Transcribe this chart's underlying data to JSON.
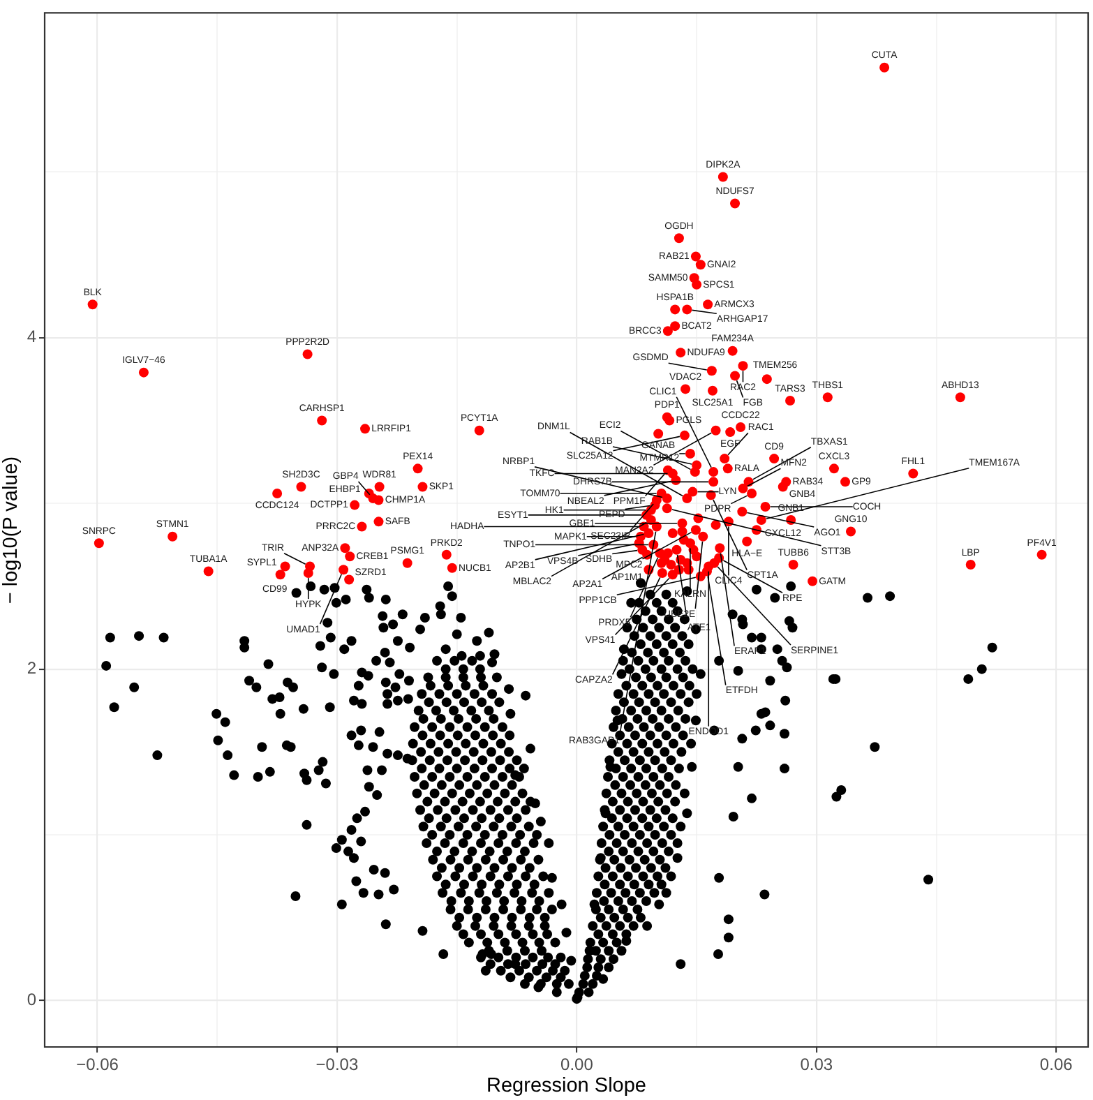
{
  "chart_data": {
    "type": "scatter",
    "xlabel": "Regression Slope",
    "ylabel": "− log10(P value)",
    "xlim": [
      -0.0666,
      0.064
    ],
    "ylim": [
      -0.28,
      5.96
    ],
    "xticks": [
      {
        "value": -0.06,
        "label": "−0.06"
      },
      {
        "value": -0.045,
        "label": null
      },
      {
        "value": -0.03,
        "label": "−0.03"
      },
      {
        "value": -0.015,
        "label": null
      },
      {
        "value": 0,
        "label": "0.00"
      },
      {
        "value": 0.015,
        "label": null
      },
      0.03,
      {
        "value": 0.045,
        "label": null
      },
      0.06
    ],
    "yticks": [
      0,
      {
        "value": 1,
        "label": null
      },
      2,
      {
        "value": 3,
        "label": null
      },
      4,
      {
        "value": 5,
        "label": null
      }
    ],
    "grid": true,
    "marker": "circle",
    "series": [
      {
        "color": "#000000",
        "x": [
          -0.0584,
          -0.0548,
          -0.0517,
          -0.0589,
          -0.0554,
          -0.0579,
          -0.0525,
          -0.0451,
          -0.044,
          -0.0449,
          -0.0437,
          -0.0429,
          -0.0416,
          -0.0416,
          -0.0386,
          -0.041,
          -0.0401,
          -0.0381,
          -0.0372,
          -0.0371,
          -0.0362,
          -0.0355,
          -0.0342,
          -0.0394,
          -0.0363,
          -0.0358,
          -0.0399,
          -0.0384,
          -0.0341,
          -0.0338,
          -0.0338,
          -0.0352,
          -0.0351,
          -0.0333,
          -0.0316,
          -0.0303,
          -0.0301,
          -0.0289,
          -0.0263,
          -0.026,
          -0.0239,
          -0.0312,
          -0.0321,
          -0.0308,
          -0.0291,
          -0.0282,
          -0.0319,
          -0.0304,
          -0.0309,
          -0.0318,
          -0.0323,
          -0.0314,
          -0.0243,
          -0.0242,
          -0.023,
          -0.0218,
          -0.0251,
          -0.024,
          -0.0234,
          -0.0224,
          -0.0209,
          -0.0269,
          -0.0261,
          -0.0273,
          -0.0279,
          -0.0269,
          -0.0222,
          -0.0239,
          -0.0227,
          -0.021,
          -0.0237,
          -0.0224,
          -0.0237,
          -0.0211,
          -0.027,
          -0.0282,
          -0.0273,
          -0.0255,
          -0.0247,
          -0.0262,
          -0.026,
          -0.025,
          -0.0244,
          -0.0237,
          -0.0224,
          -0.0212,
          -0.0265,
          -0.0275,
          -0.0282,
          -0.0294,
          -0.0301,
          -0.0286,
          -0.0279,
          -0.027,
          -0.0276,
          -0.0267,
          -0.0254,
          -0.024,
          -0.0248,
          -0.0229,
          -0.0294,
          -0.0239,
          -0.0193,
          -0.0167,
          -0.0114,
          -0.0118,
          -0.0107,
          -0.017,
          -0.0171,
          -0.0161,
          -0.0156,
          -0.0145,
          -0.015,
          -0.0164,
          -0.0144,
          -0.0125,
          -0.011,
          -0.0121,
          -0.0106,
          -0.0103,
          -0.019,
          -0.0196,
          -0.0077,
          -0.0048,
          -0.0025,
          -0.0013,
          -0.0007,
          0.0,
          -0.0064,
          -0.0085,
          -0.0083,
          -0.0058,
          -0.0077,
          -0.0052,
          -0.0045,
          -0.0035,
          -0.0031,
          -0.0019,
          0.0001,
          0.0016,
          0.0022,
          0.003,
          0.0036,
          0.0042,
          0.0051,
          0.0056,
          0.0059,
          0.0068,
          0.008,
          0.0033,
          0.0062,
          0.0103,
          0.0126,
          0.0138,
          0.0144,
          0.0149,
          0.0155,
          0.0149,
          0.0138,
          0.0178,
          0.0202,
          0.0172,
          0.0207,
          0.0202,
          0.0196,
          0.0219,
          0.0178,
          0.019,
          0.019,
          0.0177,
          0.013,
          0.0235,
          0.0231,
          0.0224,
          0.0225,
          0.0207,
          0.0231,
          0.0248,
          0.0268,
          0.0364,
          0.0392,
          0.0321,
          0.0373,
          0.0261,
          0.026,
          0.0195,
          0.0208,
          0.0219,
          0.0231,
          0.0251,
          0.0257,
          0.0263,
          0.0266,
          0.027,
          0.0242,
          0.0236,
          0.0242,
          0.026,
          0.052,
          0.0507,
          0.049,
          0.0331,
          0.0325,
          0.044,
          0.0324,
          -0.0065,
          -0.0045,
          -0.0025,
          -0.001,
          -0.0095,
          -0.0072,
          -0.005,
          -0.003,
          -0.0015,
          -0.012,
          -0.0098,
          -0.0076,
          -0.0055,
          -0.0036,
          -0.002,
          -0.0135,
          -0.0112,
          -0.009,
          -0.0068,
          -0.0047,
          -0.0027,
          -0.015,
          -0.0127,
          -0.0104,
          -0.0082,
          -0.006,
          -0.004,
          -0.0158,
          -0.0136,
          -0.0114,
          -0.0092,
          -0.007,
          -0.005,
          -0.0031,
          -0.0168,
          -0.0145,
          -0.0122,
          -0.01,
          -0.0078,
          -0.0056,
          -0.0035,
          -0.0175,
          -0.0152,
          -0.013,
          -0.0108,
          -0.0086,
          -0.0064,
          -0.0042,
          -0.018,
          -0.0158,
          -0.0136,
          -0.0114,
          -0.0092,
          -0.007,
          -0.0048,
          -0.0188,
          -0.0165,
          -0.0142,
          -0.012,
          -0.0098,
          -0.0076,
          -0.0054,
          -0.0192,
          -0.017,
          -0.0148,
          -0.0126,
          -0.0104,
          -0.0082,
          -0.006,
          -0.0196,
          -0.0174,
          -0.0152,
          -0.013,
          -0.0108,
          -0.0086,
          -0.0064,
          -0.02,
          -0.0178,
          -0.0156,
          -0.0134,
          -0.0112,
          -0.009,
          -0.0068,
          -0.0203,
          -0.0181,
          -0.0159,
          -0.0137,
          -0.0115,
          -0.0093,
          -0.0072,
          -0.0206,
          -0.0184,
          -0.0162,
          -0.014,
          -0.0118,
          -0.0096,
          -0.0075,
          -0.0205,
          -0.0183,
          -0.0161,
          -0.0139,
          -0.0117,
          -0.0095,
          -0.0203,
          -0.0181,
          -0.0159,
          -0.0137,
          -0.0115,
          -0.0093,
          -0.0198,
          -0.0176,
          -0.0154,
          -0.0132,
          -0.011,
          -0.0194,
          -0.0172,
          -0.015,
          -0.0128,
          -0.0106,
          -0.0186,
          -0.0164,
          -0.0142,
          -0.012,
          -0.01,
          -0.0175,
          -0.0153,
          -0.0131,
          -0.011,
          -0.0087,
          -0.0065,
          -0.0044,
          -0.0147,
          -0.0125,
          -0.0103,
          -0.0081,
          -0.0059,
          -0.004,
          -0.0164,
          -0.0141,
          -0.0119,
          -0.0097,
          -0.0075,
          -0.0053,
          -0.0175,
          -0.0153,
          -0.0131,
          -0.0109,
          -0.0087,
          -0.0065,
          -0.0185,
          -0.0163,
          -0.0141,
          -0.0119,
          -0.0097,
          -0.0075,
          -0.0191,
          -0.0169,
          -0.0147,
          -0.0125,
          -0.0103,
          -0.0081,
          -0.0195,
          -0.0173,
          -0.0151,
          -0.0129,
          -0.0107,
          -0.0085,
          -0.0192,
          -0.017,
          -0.0148,
          -0.0126,
          -0.0104,
          -0.0183,
          -0.0161,
          -0.0139,
          -0.0117,
          0.0003,
          0.0015,
          0.001,
          0.0025,
          0.0014,
          0.003,
          0.0046,
          0.0017,
          0.0033,
          0.005,
          0.002,
          0.0037,
          0.0054,
          0.0071,
          0.0088,
          0.0024,
          0.004,
          0.0058,
          0.0076,
          0.0025,
          0.0043,
          0.0061,
          0.0079,
          0.0097,
          0.0112,
          0.0027,
          0.0045,
          0.0064,
          0.0083,
          0.0101,
          0.0118,
          0.0029,
          0.0047,
          0.0066,
          0.0085,
          0.0104,
          0.0031,
          0.005,
          0.0069,
          0.0088,
          0.0107,
          0.0126,
          0.0033,
          0.0052,
          0.0071,
          0.009,
          0.0109,
          0.013,
          0.0035,
          0.0054,
          0.0073,
          0.0092,
          0.0111,
          0.0037,
          0.0056,
          0.0075,
          0.0094,
          0.0113,
          0.0135,
          0.0039,
          0.0058,
          0.0077,
          0.0096,
          0.0115,
          0.0041,
          0.006,
          0.0079,
          0.0098,
          0.0118,
          0.0044,
          0.0063,
          0.0082,
          0.0101,
          0.0121,
          0.0143,
          0.0046,
          0.0065,
          0.0084,
          0.0103,
          0.0124,
          0.0049,
          0.0068,
          0.0087,
          0.0106,
          0.0127,
          0.0052,
          0.0071,
          0.009,
          0.0109,
          0.013,
          0.015,
          0.0074,
          0.0093,
          0.0112,
          0.0133,
          0.0058,
          0.0077,
          0.0096,
          0.0115,
          0.0136,
          0.008,
          0.01,
          0.012,
          0.014,
          0.0063,
          0.0083,
          0.0103,
          0.0123,
          0.0086,
          0.0106,
          0.0126,
          0.0092,
          0.0112,
          0.0027,
          0.0045,
          0.0062,
          0.0034,
          0.0052,
          0.0069,
          0.0087,
          0.0036,
          0.0055,
          0.0074,
          0.0093,
          0.0111,
          0.0041,
          0.006,
          0.0079,
          0.0098,
          0.0118,
          0.0045,
          0.0064,
          0.0083,
          0.0102,
          0.0123,
          0.0049,
          0.0068,
          0.0087,
          0.0107,
          0.0128,
          0.0054,
          0.0073,
          0.0092,
          0.0112,
          0.0133,
          0.0059,
          0.0078,
          0.0098,
          0.0118,
          0.014,
          0.0066,
          0.0086,
          0.0106,
          0.0126,
          0.0145,
          0.0072,
          0.0092,
          0.0112,
          0.0132,
          0.0078,
          0.01,
          0.012,
          -0.0142,
          -0.012,
          -0.0098,
          -0.0076,
          -0.0055,
          -0.0037,
          -0.0157,
          -0.0135,
          -0.0113,
          -0.0091,
          -0.0069,
          -0.0047,
          -0.0169,
          -0.0147,
          -0.0125,
          -0.0103,
          -0.0081,
          -0.0059,
          -0.0181,
          -0.0159,
          -0.0137,
          -0.0115,
          -0.0093,
          -0.0071,
          -0.005,
          -0.0187,
          -0.0165,
          -0.0143,
          -0.0121,
          -0.0099,
          -0.0077,
          -0.0058,
          -0.0194,
          -0.0172,
          -0.015,
          -0.0128,
          -0.0106,
          -0.0084,
          -0.0066,
          -0.0193,
          -0.0171,
          -0.0149,
          -0.0127,
          -0.0105,
          -0.0084,
          -0.0185,
          -0.0163,
          -0.0141,
          -0.0119,
          -0.0097,
          -0.0164,
          -0.0142,
          -0.0121,
          -0.0083,
          -0.006,
          -0.0038,
          -0.002,
          -0.0108,
          -0.0086,
          -0.0064,
          -0.0043,
          -0.0027,
          0.0008,
          0.002,
          0.0013,
          0.0027,
          0.004,
          0.0024,
          0.004,
          0.0056,
          0.003,
          0.0047,
          0.0064,
          0.008,
          0.0035,
          0.0054,
          0.0072,
          0.009,
          0.0106,
          0.004,
          0.0058,
          0.0077,
          0.0096,
          0.0115,
          0.0044,
          0.0063,
          0.0082,
          0.01,
          0.012,
          0.0048,
          0.0067,
          0.0086,
          0.0104,
          0.0124,
          0.0052,
          0.0071,
          0.009,
          0.011,
          0.0131,
          0.0057,
          0.0076,
          0.0095,
          0.0115,
          0.0136,
          0.0062,
          0.0082,
          0.0101,
          0.0121,
          0.0141,
          0.0069,
          0.0089,
          0.0109,
          0.0129,
          0.0075,
          0.0095,
          0.0115,
          0.0135
        ],
        "values": [
          2.19,
          2.2,
          2.19,
          2.02,
          1.89,
          1.77,
          1.48,
          1.73,
          1.68,
          1.57,
          1.48,
          1.36,
          2.17,
          2.13,
          2.03,
          1.93,
          1.89,
          1.82,
          1.83,
          1.73,
          1.92,
          1.89,
          1.76,
          1.53,
          1.54,
          1.53,
          1.35,
          1.38,
          1.37,
          1.33,
          1.06,
          0.63,
          2.46,
          2.5,
          2.48,
          2.49,
          2.4,
          2.42,
          2.48,
          2.43,
          2.42,
          2.28,
          2.14,
          2.19,
          2.12,
          2.17,
          2.01,
          1.97,
          1.77,
          1.44,
          1.39,
          1.31,
          2.32,
          2.25,
          2.27,
          2.33,
          2.05,
          2.1,
          2.04,
          2.17,
          2.13,
          1.98,
          1.96,
          1.9,
          1.81,
          1.79,
          1.97,
          1.92,
          1.89,
          1.93,
          1.85,
          1.81,
          1.79,
          1.82,
          1.63,
          1.6,
          1.54,
          1.53,
          1.62,
          1.39,
          1.29,
          1.24,
          1.39,
          1.49,
          1.48,
          1.46,
          1.14,
          1.1,
          1.03,
          0.97,
          0.92,
          0.9,
          0.86,
          0.96,
          0.72,
          0.65,
          0.79,
          0.77,
          0.64,
          0.67,
          0.58,
          0.46,
          0.42,
          0.28,
          0.18,
          0.28,
          0.28,
          2.33,
          2.38,
          2.5,
          2.44,
          2.31,
          2.21,
          2.12,
          2.08,
          2.17,
          2.22,
          2.08,
          2.04,
          2.09,
          2.31,
          2.24,
          0.22,
          0.08,
          0.05,
          0.41,
          0.24,
          0.01,
          1.84,
          1.88,
          1.73,
          1.52,
          1.36,
          1.19,
          1.08,
          0.95,
          0.74,
          0.58,
          0.02,
          0.3,
          0.58,
          0.86,
          1.13,
          1.41,
          1.69,
          1.97,
          2.12,
          2.4,
          2.52,
          0.13,
          0.36,
          0.58,
          0.86,
          1.13,
          1.41,
          1.69,
          1.97,
          2.24,
          2.47,
          2.05,
          1.99,
          1.63,
          1.58,
          1.41,
          1.11,
          1.22,
          0.74,
          0.49,
          0.38,
          0.28,
          0.22,
          0.64,
          1.73,
          1.63,
          2.48,
          2.3,
          2.19,
          2.43,
          2.5,
          2.43,
          2.44,
          1.94,
          1.53,
          1.81,
          1.4,
          2.33,
          2.27,
          2.19,
          2.12,
          2.12,
          2.05,
          2.01,
          2.29,
          2.25,
          1.93,
          1.74,
          1.66,
          1.61,
          2.13,
          2.0,
          1.94,
          1.27,
          1.23,
          0.73,
          1.94,
          0.1,
          0.1,
          0.1,
          0.1,
          0.18,
          0.18,
          0.18,
          0.18,
          0.18,
          0.26,
          0.26,
          0.26,
          0.26,
          0.26,
          0.26,
          0.35,
          0.35,
          0.35,
          0.35,
          0.35,
          0.35,
          0.45,
          0.45,
          0.45,
          0.45,
          0.45,
          0.45,
          0.55,
          0.55,
          0.55,
          0.55,
          0.55,
          0.55,
          0.55,
          0.65,
          0.65,
          0.65,
          0.65,
          0.65,
          0.65,
          0.65,
          0.75,
          0.75,
          0.75,
          0.75,
          0.75,
          0.75,
          0.75,
          0.85,
          0.85,
          0.85,
          0.85,
          0.85,
          0.85,
          0.85,
          0.95,
          0.95,
          0.95,
          0.95,
          0.95,
          0.95,
          0.95,
          1.05,
          1.05,
          1.05,
          1.05,
          1.05,
          1.05,
          1.05,
          1.15,
          1.15,
          1.15,
          1.15,
          1.15,
          1.15,
          1.15,
          1.25,
          1.25,
          1.25,
          1.25,
          1.25,
          1.25,
          1.25,
          1.35,
          1.35,
          1.35,
          1.35,
          1.35,
          1.35,
          1.35,
          1.45,
          1.45,
          1.45,
          1.45,
          1.45,
          1.45,
          1.45,
          1.55,
          1.55,
          1.55,
          1.55,
          1.55,
          1.55,
          1.65,
          1.65,
          1.65,
          1.65,
          1.65,
          1.65,
          1.75,
          1.75,
          1.75,
          1.75,
          1.75,
          1.85,
          1.85,
          1.85,
          1.85,
          1.85,
          1.95,
          1.95,
          1.95,
          1.95,
          1.95,
          2.05,
          2.05,
          2.05,
          0.3,
          0.3,
          0.3,
          0.3,
          0.5,
          0.5,
          0.5,
          0.5,
          0.5,
          0.5,
          0.7,
          0.7,
          0.7,
          0.7,
          0.7,
          0.7,
          0.9,
          0.9,
          0.9,
          0.9,
          0.9,
          0.9,
          1.1,
          1.1,
          1.1,
          1.1,
          1.1,
          1.1,
          1.3,
          1.3,
          1.3,
          1.3,
          1.3,
          1.3,
          1.5,
          1.5,
          1.5,
          1.5,
          1.5,
          1.5,
          1.7,
          1.7,
          1.7,
          1.7,
          1.7,
          1.9,
          1.9,
          1.9,
          1.9,
          0.05,
          0.05,
          0.15,
          0.15,
          0.25,
          0.25,
          0.25,
          0.35,
          0.35,
          0.35,
          0.45,
          0.45,
          0.45,
          0.45,
          0.45,
          0.55,
          0.55,
          0.55,
          0.55,
          0.65,
          0.65,
          0.65,
          0.65,
          0.65,
          0.65,
          0.75,
          0.75,
          0.75,
          0.75,
          0.75,
          0.75,
          0.85,
          0.85,
          0.85,
          0.85,
          0.85,
          0.95,
          0.95,
          0.95,
          0.95,
          0.95,
          0.95,
          1.05,
          1.05,
          1.05,
          1.05,
          1.05,
          1.05,
          1.15,
          1.15,
          1.15,
          1.15,
          1.15,
          1.25,
          1.25,
          1.25,
          1.25,
          1.25,
          1.25,
          1.35,
          1.35,
          1.35,
          1.35,
          1.35,
          1.45,
          1.45,
          1.45,
          1.45,
          1.45,
          1.55,
          1.55,
          1.55,
          1.55,
          1.55,
          1.55,
          1.65,
          1.65,
          1.65,
          1.65,
          1.65,
          1.75,
          1.75,
          1.75,
          1.75,
          1.75,
          1.85,
          1.85,
          1.85,
          1.85,
          1.85,
          1.85,
          1.95,
          1.95,
          1.95,
          1.95,
          2.05,
          2.05,
          2.05,
          2.05,
          2.05,
          2.15,
          2.15,
          2.15,
          2.15,
          2.25,
          2.25,
          2.25,
          2.25,
          2.35,
          2.35,
          2.35,
          2.45,
          2.45,
          0.4,
          0.4,
          0.4,
          0.6,
          0.6,
          0.6,
          0.6,
          0.8,
          0.8,
          0.8,
          0.8,
          0.8,
          1.0,
          1.0,
          1.0,
          1.0,
          1.0,
          1.2,
          1.2,
          1.2,
          1.2,
          1.2,
          1.4,
          1.4,
          1.4,
          1.4,
          1.4,
          1.6,
          1.6,
          1.6,
          1.6,
          1.6,
          1.8,
          1.8,
          1.8,
          1.8,
          1.8,
          2.0,
          2.0,
          2.0,
          2.0,
          2.0,
          2.2,
          2.2,
          2.2,
          2.2,
          2.4,
          2.4,
          2.4,
          0.4,
          0.4,
          0.4,
          0.4,
          0.4,
          0.4,
          0.6,
          0.6,
          0.6,
          0.6,
          0.6,
          0.6,
          0.8,
          0.8,
          0.8,
          0.8,
          0.8,
          0.8,
          1.0,
          1.0,
          1.0,
          1.0,
          1.0,
          1.0,
          1.0,
          1.2,
          1.2,
          1.2,
          1.2,
          1.2,
          1.2,
          1.2,
          1.4,
          1.4,
          1.4,
          1.4,
          1.4,
          1.4,
          1.4,
          1.6,
          1.6,
          1.6,
          1.6,
          1.6,
          1.6,
          1.8,
          1.8,
          1.8,
          1.8,
          1.8,
          2.0,
          2.0,
          2.0,
          0.14,
          0.14,
          0.14,
          0.14,
          0.22,
          0.22,
          0.22,
          0.22,
          0.22,
          0.1,
          0.1,
          0.2,
          0.2,
          0.2,
          0.3,
          0.3,
          0.3,
          0.5,
          0.5,
          0.5,
          0.5,
          0.7,
          0.7,
          0.7,
          0.7,
          0.7,
          0.9,
          0.9,
          0.9,
          0.9,
          0.9,
          1.1,
          1.1,
          1.1,
          1.1,
          1.1,
          1.3,
          1.3,
          1.3,
          1.3,
          1.3,
          1.5,
          1.5,
          1.5,
          1.5,
          1.5,
          1.7,
          1.7,
          1.7,
          1.7,
          1.7,
          1.9,
          1.9,
          1.9,
          1.9,
          1.9,
          2.1,
          2.1,
          2.1,
          2.1,
          2.3,
          2.3,
          2.3,
          2.3
        ]
      },
      {
        "color": "#ff0000",
        "x": [
          0.0385,
          0.0183,
          0.0198,
          0.0128,
          0.0149,
          0.0155,
          0.0147,
          0.015,
          0.0164,
          0.0138,
          0.0123,
          0.0123,
          0.0114,
          -0.0606,
          0.013,
          0.0195,
          -0.0337,
          0.0208,
          0.0169,
          -0.0542,
          0.0198,
          0.0238,
          0.0136,
          0.017,
          0.048,
          0.0314,
          0.0267,
          0.0113,
          0.0116,
          -0.0319,
          -0.0265,
          -0.0122,
          0.0102,
          0.0135,
          0.0192,
          0.0174,
          0.0205,
          0.0247,
          0.0322,
          0.0421,
          0.0336,
          -0.0199,
          -0.0193,
          -0.0247,
          -0.026,
          -0.0255,
          -0.0248,
          -0.0345,
          -0.0375,
          -0.0278,
          -0.0248,
          -0.0269,
          0.0343,
          -0.0598,
          -0.0506,
          -0.029,
          -0.0284,
          -0.0212,
          -0.0163,
          -0.0156,
          -0.0461,
          -0.0365,
          -0.0371,
          -0.0334,
          -0.0336,
          -0.0292,
          -0.0285,
          0.0493,
          0.0582,
          0.0271,
          0.0295,
          0.012,
          0.0114,
          0.0124,
          0.0142,
          0.0148,
          0.015,
          0.0185,
          0.0171,
          0.0189,
          0.0215,
          0.0171,
          0.0208,
          0.0219,
          0.0262,
          0.0258,
          0.0106,
          0.01,
          0.0113,
          0.0145,
          0.0098,
          0.0093,
          0.0138,
          0.0168,
          0.0207,
          0.0236,
          0.0087,
          0.0093,
          0.0113,
          0.0149,
          0.0084,
          0.01,
          0.0132,
          0.019,
          0.0231,
          0.0268,
          0.0225,
          0.008,
          0.009,
          0.0078,
          0.0158,
          0.0142,
          0.0082,
          0.0096,
          0.0213,
          0.0088,
          0.0104,
          0.0125,
          0.0179,
          0.0178,
          0.0172,
          0.0165,
          0.009,
          0.0107,
          0.012,
          0.0163,
          0.0155,
          0.011,
          0.0118,
          0.013,
          0.0138,
          0.0128,
          0.014,
          0.0114,
          0.015,
          0.0146,
          0.0134,
          0.012,
          0.0152,
          0.0174,
          0.0132,
          0.0106
        ],
        "values": [
          5.63,
          4.97,
          4.81,
          4.6,
          4.49,
          4.44,
          4.36,
          4.32,
          4.2,
          4.17,
          4.17,
          4.07,
          4.04,
          4.2,
          3.91,
          3.92,
          3.9,
          3.83,
          3.8,
          3.79,
          3.77,
          3.75,
          3.69,
          3.68,
          3.64,
          3.64,
          3.62,
          3.52,
          3.5,
          3.5,
          3.45,
          3.44,
          3.42,
          3.41,
          3.43,
          3.44,
          3.46,
          3.27,
          3.21,
          3.18,
          3.13,
          3.21,
          3.1,
          3.1,
          3.06,
          3.03,
          3.02,
          3.1,
          3.06,
          2.99,
          2.89,
          2.86,
          2.83,
          2.76,
          2.8,
          2.73,
          2.68,
          2.64,
          2.69,
          2.61,
          2.59,
          2.62,
          2.57,
          2.62,
          2.58,
          2.6,
          2.54,
          2.63,
          2.69,
          2.63,
          2.53,
          3.18,
          3.2,
          3.14,
          3.3,
          3.19,
          3.23,
          3.27,
          3.19,
          3.21,
          3.13,
          3.13,
          3.09,
          3.06,
          3.13,
          3.1,
          3.06,
          3.02,
          3.03,
          3.07,
          2.99,
          2.96,
          3.03,
          3.05,
          2.95,
          2.98,
          2.93,
          2.9,
          2.97,
          2.84,
          2.86,
          2.86,
          2.88,
          2.89,
          2.9,
          2.9,
          2.84,
          2.8,
          2.82,
          2.76,
          2.8,
          2.76,
          2.72,
          2.75,
          2.77,
          2.69,
          2.7,
          2.72,
          2.73,
          2.67,
          2.64,
          2.62,
          2.6,
          2.58,
          2.57,
          2.59,
          2.56,
          2.66,
          2.63,
          2.66,
          2.64,
          2.6,
          2.6,
          2.7,
          2.68,
          2.72,
          2.78,
          2.82,
          2.91,
          2.87,
          2.83,
          2.64
        ]
      }
    ],
    "annotations": [
      {
        "text": "CUTA",
        "x": 0.0385,
        "y": 5.63
      },
      {
        "text": "DIPK2A",
        "x": 0.0183,
        "y": 4.97
      },
      {
        "text": "NDUFS7",
        "x": 0.0198,
        "y": 4.81
      },
      {
        "text": "OGDH",
        "x": 0.0128,
        "y": 4.6
      },
      {
        "text": "RAB21",
        "x": 0.0149,
        "y": 4.49
      },
      {
        "text": "GNAI2",
        "x": 0.0155,
        "y": 4.44
      },
      {
        "text": "SAMM50",
        "x": 0.0147,
        "y": 4.36
      },
      {
        "text": "SPCS1",
        "x": 0.015,
        "y": 4.32
      },
      {
        "text": "ARMCX3",
        "x": 0.0164,
        "y": 4.2
      },
      {
        "text": "ARHGAP17",
        "x": 0.0138,
        "y": 4.17
      },
      {
        "text": "HSPA1B",
        "x": 0.0123,
        "y": 4.17
      },
      {
        "text": "BCAT2",
        "x": 0.0123,
        "y": 4.07
      },
      {
        "text": "BRCC3",
        "x": 0.0114,
        "y": 4.04
      },
      {
        "text": "BLK",
        "x": -0.0606,
        "y": 4.2
      },
      {
        "text": "NDUFA9",
        "x": 0.013,
        "y": 3.91
      },
      {
        "text": "FAM234A",
        "x": 0.0195,
        "y": 3.92
      },
      {
        "text": "PPP2R2D",
        "x": -0.0337,
        "y": 3.9
      },
      {
        "text": "RAC2",
        "x": 0.0208,
        "y": 3.83
      },
      {
        "text": "GSDMD",
        "x": 0.0169,
        "y": 3.8
      },
      {
        "text": "IGLV7−46",
        "x": -0.0542,
        "y": 3.79
      },
      {
        "text": "FGB",
        "x": 0.0198,
        "y": 3.77
      },
      {
        "text": "TMEM256",
        "x": 0.0238,
        "y": 3.75
      },
      {
        "text": "VDAC2",
        "x": 0.0136,
        "y": 3.69
      },
      {
        "text": "SLC25A1",
        "x": 0.017,
        "y": 3.68
      },
      {
        "text": "ABHD13",
        "x": 0.048,
        "y": 3.64
      },
      {
        "text": "THBS1",
        "x": 0.0314,
        "y": 3.64
      },
      {
        "text": "TARS3",
        "x": 0.0267,
        "y": 3.62
      },
      {
        "text": "PDP1",
        "x": 0.0113,
        "y": 3.52
      },
      {
        "text": "PGLS",
        "x": 0.0116,
        "y": 3.5
      },
      {
        "text": "CARHSP1",
        "x": -0.0319,
        "y": 3.5
      },
      {
        "text": "LRRFIP1",
        "x": -0.0265,
        "y": 3.45
      },
      {
        "text": "PCYT1A",
        "x": -0.0122,
        "y": 3.44
      },
      {
        "text": "GANAB",
        "x": 0.0102,
        "y": 3.42
      },
      {
        "text": "SLC25A12",
        "x": 0.0135,
        "y": 3.41
      },
      {
        "text": "EGF",
        "x": 0.0192,
        "y": 3.43
      },
      {
        "text": "MAN2A2",
        "x": 0.0174,
        "y": 3.44
      },
      {
        "text": "CCDC22",
        "x": 0.0205,
        "y": 3.46
      },
      {
        "text": "CD9",
        "x": 0.0247,
        "y": 3.27
      },
      {
        "text": "CXCL3",
        "x": 0.0322,
        "y": 3.21
      },
      {
        "text": "FHL1",
        "x": 0.0421,
        "y": 3.18
      },
      {
        "text": "GP9",
        "x": 0.0336,
        "y": 3.13
      },
      {
        "text": "PEX14",
        "x": -0.0199,
        "y": 3.21
      },
      {
        "text": "SKP1",
        "x": -0.0193,
        "y": 3.1
      },
      {
        "text": "WDR81",
        "x": -0.0247,
        "y": 3.1
      },
      {
        "text": "EHBP1",
        "x": -0.026,
        "y": 3.06
      },
      {
        "text": "GBP4",
        "x": -0.0255,
        "y": 3.03
      },
      {
        "text": "CHMP1A",
        "x": -0.0248,
        "y": 3.02
      },
      {
        "text": "SH2D3C",
        "x": -0.0345,
        "y": 3.1
      },
      {
        "text": "CCDC124",
        "x": -0.0375,
        "y": 3.06
      },
      {
        "text": "DCTPP1",
        "x": -0.0278,
        "y": 2.99
      },
      {
        "text": "SAFB",
        "x": -0.0248,
        "y": 2.89
      },
      {
        "text": "PRRC2C",
        "x": -0.0269,
        "y": 2.86
      },
      {
        "text": "GNG10",
        "x": 0.0343,
        "y": 2.83
      },
      {
        "text": "SNRPC",
        "x": -0.0598,
        "y": 2.76
      },
      {
        "text": "STMN1",
        "x": -0.0506,
        "y": 2.8
      },
      {
        "text": "ANP32A",
        "x": -0.029,
        "y": 2.73
      },
      {
        "text": "CREB1",
        "x": -0.0284,
        "y": 2.68
      },
      {
        "text": "PSMG1",
        "x": -0.0212,
        "y": 2.64
      },
      {
        "text": "PRKD2",
        "x": -0.0163,
        "y": 2.69
      },
      {
        "text": "NUCB1",
        "x": -0.0156,
        "y": 2.61
      },
      {
        "text": "TUBA1A",
        "x": -0.0461,
        "y": 2.59
      },
      {
        "text": "SYPL1",
        "x": -0.0365,
        "y": 2.62
      },
      {
        "text": "CD99",
        "x": -0.0371,
        "y": 2.57
      },
      {
        "text": "TRIR",
        "x": -0.0334,
        "y": 2.62
      },
      {
        "text": "HYPK",
        "x": -0.0336,
        "y": 2.58
      },
      {
        "text": "UMAD1",
        "x": -0.0292,
        "y": 2.6
      },
      {
        "text": "SZRD1",
        "x": -0.0285,
        "y": 2.54
      },
      {
        "text": "LBP",
        "x": 0.0493,
        "y": 2.63
      },
      {
        "text": "PF4V1",
        "x": 0.0582,
        "y": 2.69
      },
      {
        "text": "TUBB6",
        "x": 0.0271,
        "y": 2.63
      },
      {
        "text": "GATM",
        "x": 0.0295,
        "y": 2.53
      },
      {
        "text": "TKFC",
        "x": 0.012,
        "y": 3.18
      },
      {
        "text": "PPM1F",
        "x": 0.0114,
        "y": 3.2
      },
      {
        "text": "NBEAL2",
        "x": 0.0124,
        "y": 3.14
      },
      {
        "text": "MTMR12",
        "x": 0.0142,
        "y": 3.3
      },
      {
        "text": "ECI2",
        "x": 0.0148,
        "y": 3.19
      },
      {
        "text": "RAB1B",
        "x": 0.015,
        "y": 3.23
      },
      {
        "text": "RAC1",
        "x": 0.0185,
        "y": 3.27
      },
      {
        "text": "CLIC1",
        "x": 0.0171,
        "y": 3.19
      },
      {
        "text": "RALA",
        "x": 0.0189,
        "y": 3.21
      },
      {
        "text": "TBXAS1",
        "x": 0.0215,
        "y": 3.13
      },
      {
        "text": "DHRS7B",
        "x": 0.0171,
        "y": 3.13
      },
      {
        "text": "MFN2",
        "x": 0.0208,
        "y": 3.09
      },
      {
        "text": "PDPR",
        "x": 0.0219,
        "y": 3.06
      },
      {
        "text": "RAB34",
        "x": 0.0262,
        "y": 3.13
      },
      {
        "text": "GNB4",
        "x": 0.0258,
        "y": 3.1
      },
      {
        "text": "TOMM70",
        "x": 0.0106,
        "y": 3.06
      },
      {
        "text": "SEC23IP",
        "x": 0.01,
        "y": 3.02
      },
      {
        "text": "NRBP1",
        "x": 0.0113,
        "y": 3.03
      },
      {
        "text": "LYN",
        "x": 0.0145,
        "y": 3.07
      },
      {
        "text": "PEPD",
        "x": 0.0098,
        "y": 2.99
      },
      {
        "text": "HK1",
        "x": 0.0093,
        "y": 2.96
      },
      {
        "text": "DNM1L",
        "x": 0.0138,
        "y": 3.03
      },
      {
        "text": "CPT1A",
        "x": 0.0168,
        "y": 3.05
      },
      {
        "text": "AGO1",
        "x": 0.0207,
        "y": 2.95
      },
      {
        "text": "COCH",
        "x": 0.0236,
        "y": 2.98
      },
      {
        "text": "ESYT1",
        "x": 0.0087,
        "y": 2.93
      },
      {
        "text": "MBLAC2",
        "x": 0.0093,
        "y": 2.9
      },
      {
        "text": "STT3B",
        "x": 0.0113,
        "y": 2.97
      },
      {
        "text": "MPC2",
        "x": 0.0149,
        "y": 2.84
      },
      {
        "text": "HADHA",
        "x": 0.0084,
        "y": 2.86
      },
      {
        "text": "RAB3GAP1",
        "x": 0.01,
        "y": 2.86
      },
      {
        "text": "GBE1",
        "x": 0.0132,
        "y": 2.88
      },
      {
        "text": "CLIC4",
        "x": 0.019,
        "y": 2.89
      },
      {
        "text": "TMEM167A",
        "x": 0.0231,
        "y": 2.9
      },
      {
        "text": "GNB1",
        "x": 0.0268,
        "y": 2.9
      },
      {
        "text": "CXCL12",
        "x": 0.0225,
        "y": 2.84
      },
      {
        "text": "MAPK1",
        "x": 0.008,
        "y": 2.8
      },
      {
        "text": "AP2B1",
        "x": 0.009,
        "y": 2.82
      },
      {
        "text": "VPS4B",
        "x": 0.0078,
        "y": 2.76
      },
      {
        "text": "UBE2E",
        "x": 0.0158,
        "y": 2.8
      },
      {
        "text": "KALRN",
        "x": 0.0142,
        "y": 2.76
      },
      {
        "text": "SDHB",
        "x": 0.0082,
        "y": 2.72
      },
      {
        "text": "TNPO1",
        "x": 0.0096,
        "y": 2.75
      },
      {
        "text": "HLA−E",
        "x": 0.0213,
        "y": 2.77
      },
      {
        "text": "AP2A1",
        "x": 0.0088,
        "y": 2.69
      },
      {
        "text": "PRDX5",
        "x": 0.0104,
        "y": 2.7
      },
      {
        "text": "ATE1",
        "x": 0.0125,
        "y": 2.72
      },
      {
        "text": "ERAP1",
        "x": 0.0179,
        "y": 2.73
      },
      {
        "text": "RPE",
        "x": 0.0178,
        "y": 2.67
      },
      {
        "text": "SERPINE1",
        "x": 0.0172,
        "y": 2.64
      },
      {
        "text": "ENDOD1",
        "x": 0.0165,
        "y": 2.62
      },
      {
        "text": "AP1M1",
        "x": 0.009,
        "y": 2.6
      },
      {
        "text": "CAPZA2",
        "x": 0.0107,
        "y": 2.58
      },
      {
        "text": "VPS41",
        "x": 0.012,
        "y": 2.57
      },
      {
        "text": "ETFDH",
        "x": 0.0163,
        "y": 2.59
      },
      {
        "text": "PPP1CB",
        "x": 0.0155,
        "y": 2.56
      }
    ]
  }
}
